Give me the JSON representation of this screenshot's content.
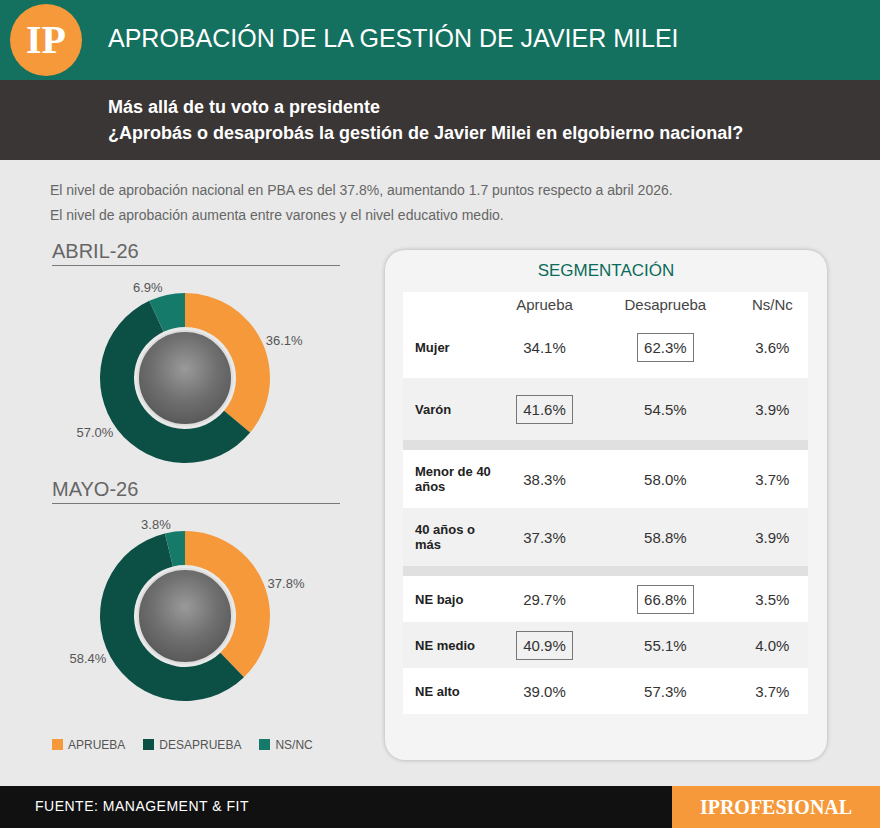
{
  "header": {
    "logo": "IP",
    "title": "APROBACIÓN DE LA GESTIÓN DE JAVIER MILEI",
    "question": [
      "Más allá de tu voto a presidente",
      "¿Aprobás o desaprobás la gestión de Javier Milei en elgobierno nacional?"
    ],
    "notes": [
      "El nivel de aprobación nacional en PBA es del 37.8%, aumentando 1.7 puntos respecto a abril 2026.",
      "El nivel de aprobación aumenta entre varones y el nivel educativo medio."
    ]
  },
  "chart_data": [
    {
      "type": "pie",
      "title": "ABRIL-26",
      "categories": [
        "APRUEBA",
        "DESAPRUEBA",
        "NS/NC"
      ],
      "values": [
        36.1,
        57.0,
        6.9
      ],
      "value_labels": [
        "36.1%",
        "57.0%",
        "6.9%"
      ],
      "colors": [
        "#f5993a",
        "#0b4f45",
        "#167a6b"
      ],
      "data_labels": true,
      "legend": "bottom"
    },
    {
      "type": "pie",
      "title": "MAYO-26",
      "categories": [
        "APRUEBA",
        "DESAPRUEBA",
        "NS/NC"
      ],
      "values": [
        37.8,
        58.4,
        3.8
      ],
      "value_labels": [
        "37.8%",
        "58.4%",
        "3.8%"
      ],
      "colors": [
        "#f5993a",
        "#0b4f45",
        "#167a6b"
      ],
      "data_labels": true,
      "legend": "bottom"
    }
  ],
  "table": {
    "title": "SEGMENTACIÓN",
    "columns": [
      "Aprueba",
      "Desaprueba",
      "Ns/Nc"
    ],
    "groups": [
      [
        {
          "label": "Mujer",
          "cells": [
            "34.1%",
            "62.3%",
            "3.6%"
          ],
          "boxed": "Desaprueba"
        },
        {
          "label": "Varón",
          "cells": [
            "41.6%",
            "54.5%",
            "3.9%"
          ],
          "boxed": "Aprueba"
        }
      ],
      [
        {
          "label": "Menor de 40 años",
          "cells": [
            "38.3%",
            "58.0%",
            "3.7%"
          ]
        },
        {
          "label": "40 años o más",
          "cells": [
            "37.3%",
            "58.8%",
            "3.9%"
          ]
        }
      ],
      [
        {
          "label": "NE bajo",
          "cells": [
            "29.7%",
            "66.8%",
            "3.5%"
          ],
          "boxed": "Desaprueba"
        },
        {
          "label": "NE medio",
          "cells": [
            "40.9%",
            "55.1%",
            "4.0%"
          ],
          "boxed": "Aprueba"
        },
        {
          "label": "NE alto",
          "cells": [
            "39.0%",
            "57.3%",
            "3.7%"
          ]
        }
      ]
    ]
  },
  "footer": {
    "source": "FUENTE: MANAGEMENT & FIT",
    "brand": "IPROFESIONAL"
  }
}
